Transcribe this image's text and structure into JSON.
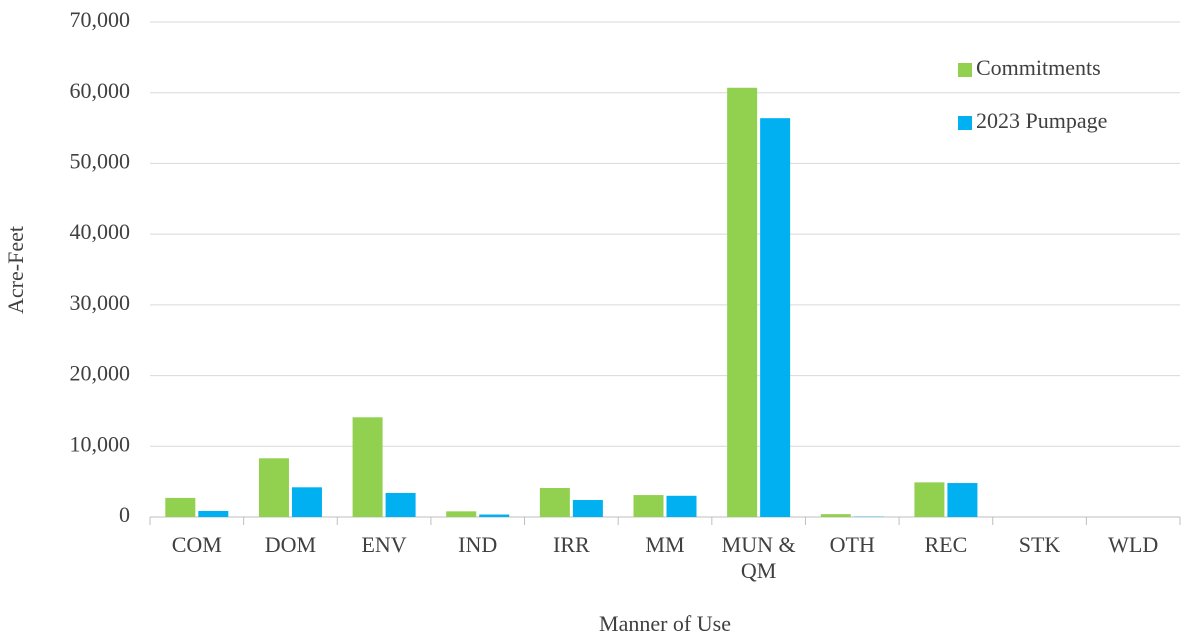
{
  "chart_data": {
    "type": "bar",
    "x_label": "Manner of Use",
    "y_label": "Acre-Feet",
    "categories": [
      "COM",
      "DOM",
      "ENV",
      "IND",
      "IRR",
      "MM",
      "MUN & QM",
      "OTH",
      "REC",
      "STK",
      "WLD"
    ],
    "series": [
      {
        "name": "Commitments",
        "color": "#92d050",
        "values": [
          2700,
          8300,
          14100,
          800,
          4100,
          3100,
          60700,
          400,
          4900,
          0,
          0
        ]
      },
      {
        "name": "2023 Pumpage",
        "color": "#00b0f0",
        "values": [
          850,
          4200,
          3400,
          350,
          2400,
          3000,
          56400,
          50,
          4800,
          0,
          0
        ]
      }
    ],
    "ylim": [
      0,
      70000
    ],
    "yticks": [
      0,
      {
        "value": 10000,
        "label": "10,000"
      },
      {
        "value": 20000,
        "label": "20,000"
      },
      {
        "value": 30000,
        "label": "30,000"
      },
      {
        "value": 40000,
        "label": "40,000"
      },
      {
        "value": 50000,
        "label": "50,000"
      },
      {
        "value": 60000,
        "label": "60,000"
      },
      {
        "value": 70000,
        "label": "70,000"
      }
    ],
    "grid": true,
    "legend": "upper right"
  }
}
